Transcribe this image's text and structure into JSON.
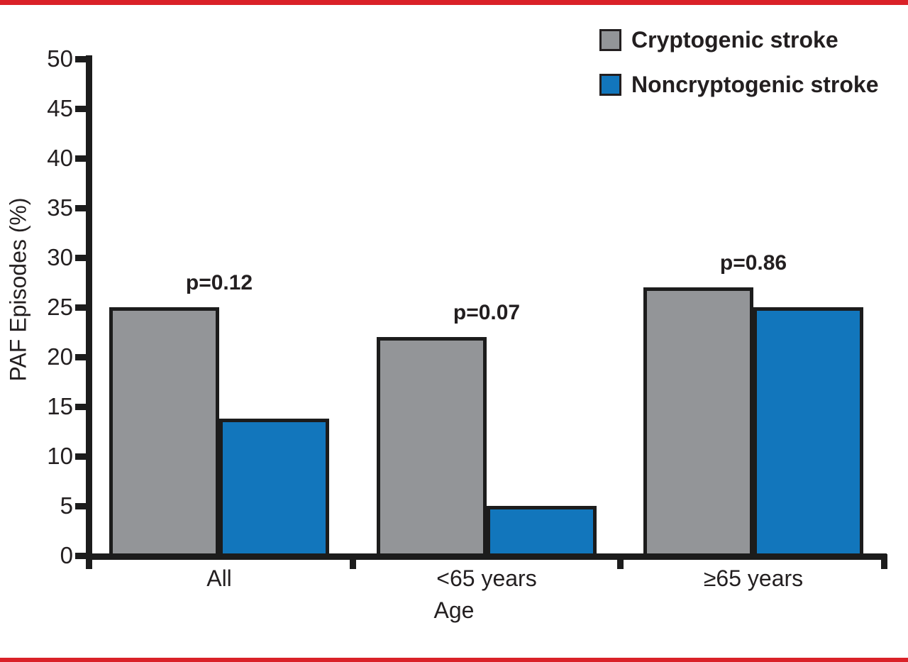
{
  "colors": {
    "accent_rule_red": "#da2128",
    "bar_gray": "#939598",
    "bar_blue": "#1276bc",
    "ink_black": "#231f20"
  },
  "legend": {
    "position": "top-right",
    "items": [
      {
        "label": "Cryptogenic stroke",
        "swatch": "gray-square-swatch"
      },
      {
        "label": "Noncryptogenic stroke",
        "swatch": "blue-square-swatch"
      }
    ]
  },
  "chart_data": {
    "type": "bar",
    "xlabel": "Age",
    "ylabel": "PAF Episodes (%)",
    "categories": [
      "All",
      "<65 years",
      "≥65 years"
    ],
    "series": [
      {
        "name": "Cryptogenic stroke",
        "color": "#939598",
        "values": [
          25,
          22,
          27
        ]
      },
      {
        "name": "Noncryptogenic stroke",
        "color": "#1276bc",
        "values": [
          13.8,
          5,
          25
        ]
      }
    ],
    "p_values": [
      "p=0.12",
      "p=0.07",
      "p=0.86"
    ],
    "ylim": [
      0,
      50
    ],
    "ytick_step": 5,
    "grid": false,
    "legend_position": "top-right"
  }
}
